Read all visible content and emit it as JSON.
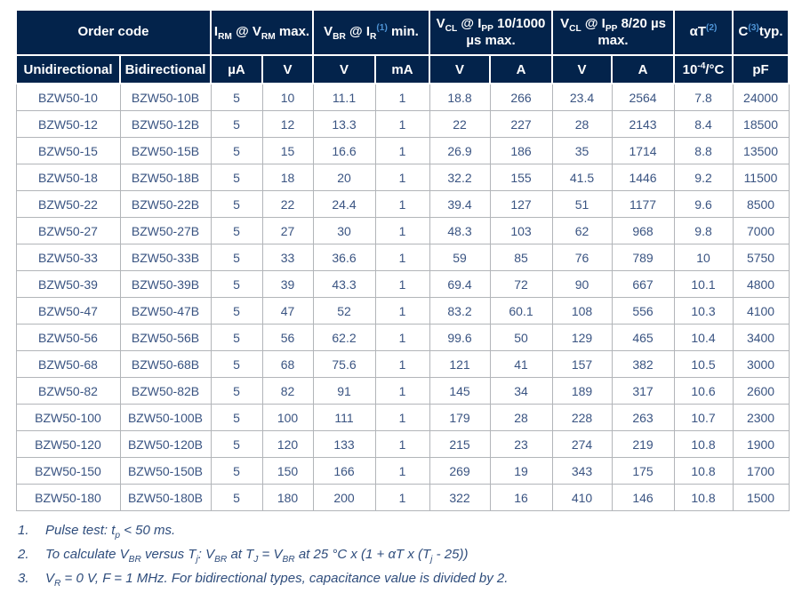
{
  "table": {
    "header_groups": [
      "Order code",
      "I~RM~ @ V~RM~ max.",
      "V~BR~ @ I~R~§(1)§ min.",
      "V~CL~ @ I~PP~ 10/1000 µs max.",
      "V~CL~ @ I~PP~ 8/20 µs max.",
      "αT§(2)§",
      "C§(3)§typ."
    ],
    "subheaders": [
      "Unidirectional",
      "Bidirectional",
      "µA",
      "V",
      "V",
      "mA",
      "V",
      "A",
      "V",
      "A",
      "10^-4^/°C",
      "pF"
    ],
    "rows": [
      [
        "BZW50-10",
        "BZW50-10B",
        "5",
        "10",
        "11.1",
        "1",
        "18.8",
        "266",
        "23.4",
        "2564",
        "7.8",
        "24000"
      ],
      [
        "BZW50-12",
        "BZW50-12B",
        "5",
        "12",
        "13.3",
        "1",
        "22",
        "227",
        "28",
        "2143",
        "8.4",
        "18500"
      ],
      [
        "BZW50-15",
        "BZW50-15B",
        "5",
        "15",
        "16.6",
        "1",
        "26.9",
        "186",
        "35",
        "1714",
        "8.8",
        "13500"
      ],
      [
        "BZW50-18",
        "BZW50-18B",
        "5",
        "18",
        "20",
        "1",
        "32.2",
        "155",
        "41.5",
        "1446",
        "9.2",
        "11500"
      ],
      [
        "BZW50-22",
        "BZW50-22B",
        "5",
        "22",
        "24.4",
        "1",
        "39.4",
        "127",
        "51",
        "1177",
        "9.6",
        "8500"
      ],
      [
        "BZW50-27",
        "BZW50-27B",
        "5",
        "27",
        "30",
        "1",
        "48.3",
        "103",
        "62",
        "968",
        "9.8",
        "7000"
      ],
      [
        "BZW50-33",
        "BZW50-33B",
        "5",
        "33",
        "36.6",
        "1",
        "59",
        "85",
        "76",
        "789",
        "10",
        "5750"
      ],
      [
        "BZW50-39",
        "BZW50-39B",
        "5",
        "39",
        "43.3",
        "1",
        "69.4",
        "72",
        "90",
        "667",
        "10.1",
        "4800"
      ],
      [
        "BZW50-47",
        "BZW50-47B",
        "5",
        "47",
        "52",
        "1",
        "83.2",
        "60.1",
        "108",
        "556",
        "10.3",
        "4100"
      ],
      [
        "BZW50-56",
        "BZW50-56B",
        "5",
        "56",
        "62.2",
        "1",
        "99.6",
        "50",
        "129",
        "465",
        "10.4",
        "3400"
      ],
      [
        "BZW50-68",
        "BZW50-68B",
        "5",
        "68",
        "75.6",
        "1",
        "121",
        "41",
        "157",
        "382",
        "10.5",
        "3000"
      ],
      [
        "BZW50-82",
        "BZW50-82B",
        "5",
        "82",
        "91",
        "1",
        "145",
        "34",
        "189",
        "317",
        "10.6",
        "2600"
      ],
      [
        "BZW50-100",
        "BZW50-100B",
        "5",
        "100",
        "111",
        "1",
        "179",
        "28",
        "228",
        "263",
        "10.7",
        "2300"
      ],
      [
        "BZW50-120",
        "BZW50-120B",
        "5",
        "120",
        "133",
        "1",
        "215",
        "23",
        "274",
        "219",
        "10.8",
        "1900"
      ],
      [
        "BZW50-150",
        "BZW50-150B",
        "5",
        "150",
        "166",
        "1",
        "269",
        "19",
        "343",
        "175",
        "10.8",
        "1700"
      ],
      [
        "BZW50-180",
        "BZW50-180B",
        "5",
        "180",
        "200",
        "1",
        "322",
        "16",
        "410",
        "146",
        "10.8",
        "1500"
      ]
    ]
  },
  "footnotes": [
    {
      "num": "1.",
      "text": "Pulse test: t~p~ < 50 ms."
    },
    {
      "num": "2.",
      "text": "To calculate V~BR~ versus T~j~: V~BR~ at T~J~ = V~BR~ at 25 °C x (1 + αT x (T~j~ - 25))"
    },
    {
      "num": "3.",
      "text": "V~R~ = 0 V, F = 1 MHz. For bidirectional types, capacitance value is divided by 2."
    }
  ],
  "colors": {
    "header_bg": "#03234B",
    "header_text": "#ffffff",
    "footnote_ref_blue": "#4e94d6",
    "data_text": "#3a5482",
    "grid_border": "#b2b5b9"
  }
}
